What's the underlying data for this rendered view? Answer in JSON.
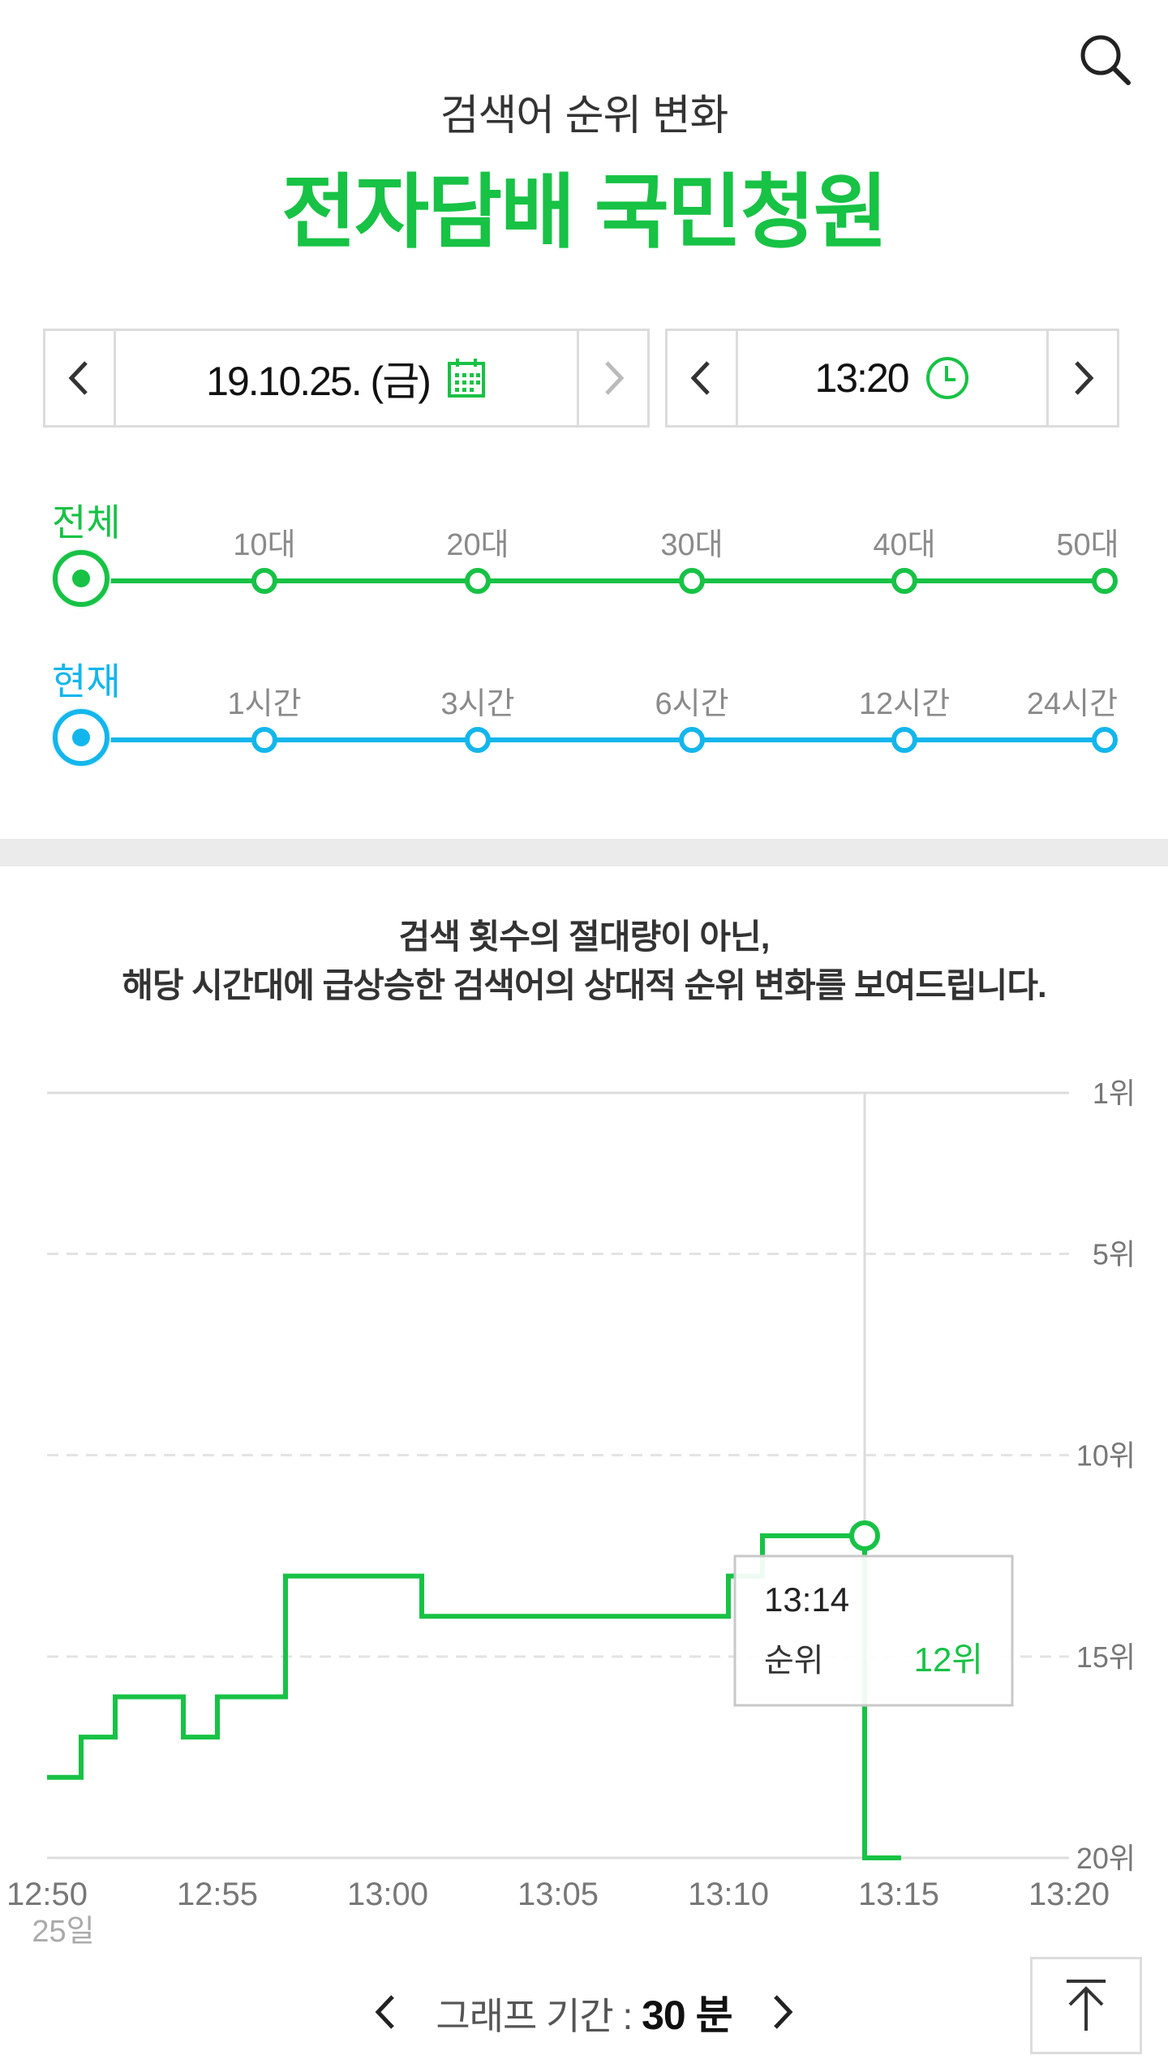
{
  "header": {
    "subtitle": "검색어 순위 변화",
    "keyword": "전자담배 국민청원"
  },
  "date_picker": {
    "value": "19.10.25. (금)"
  },
  "time_picker": {
    "value": "13:20"
  },
  "age_filter": {
    "title": "전체",
    "options": [
      "10대",
      "20대",
      "30대",
      "40대",
      "50대"
    ],
    "selected": "전체",
    "color": "#17c245"
  },
  "period_filter": {
    "title": "현재",
    "options": [
      "1시간",
      "3시간",
      "6시간",
      "12시간",
      "24시간"
    ],
    "selected": "현재",
    "color": "#13b6ec"
  },
  "notice": {
    "line1": "검색 횟수의 절대량이 아닌,",
    "line2": "해당 시간대에 급상승한 검색어의 상대적 순위 변화를 보여드립니다."
  },
  "chart_data": {
    "type": "line",
    "step": true,
    "x_unit": "time",
    "x_ticks": [
      "12:50",
      "12:55",
      "13:00",
      "13:05",
      "13:10",
      "13:15",
      "13:20"
    ],
    "x_date_label": "25일",
    "y_ticks": [
      "1위",
      "5위",
      "10위",
      "15위",
      "20위"
    ],
    "y_tick_values": [
      1,
      5,
      10,
      15,
      20
    ],
    "y_range": [
      1,
      20
    ],
    "y_inverted": true,
    "grid": true,
    "series_color": "#17c245",
    "points": [
      {
        "x": "12:50",
        "y": 18
      },
      {
        "x": "12:51",
        "y": 17
      },
      {
        "x": "12:52",
        "y": 16
      },
      {
        "x": "12:54",
        "y": 17
      },
      {
        "x": "12:55",
        "y": 16
      },
      {
        "x": "12:57",
        "y": 13
      },
      {
        "x": "13:01",
        "y": 14
      },
      {
        "x": "13:10",
        "y": 13
      },
      {
        "x": "13:11",
        "y": 12
      },
      {
        "x": "13:14",
        "y": 12
      },
      {
        "x": "13:14",
        "y": 20
      },
      {
        "x": "13:15",
        "y": 21
      }
    ],
    "tooltip": {
      "time": "13:14",
      "rank_label": "순위",
      "rank_value": "12위"
    }
  },
  "period_control": {
    "label": "그래프 기간 : ",
    "value": "30 분"
  }
}
